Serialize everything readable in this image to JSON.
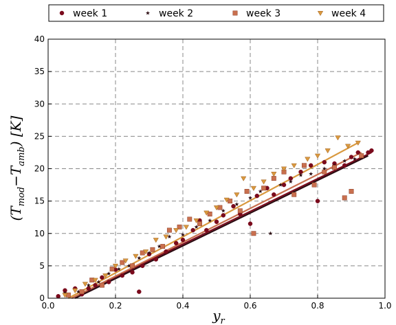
{
  "chart_data": {
    "type": "scatter",
    "xlabel": "y_r",
    "ylabel": "(T_mod − T_amb) [K]",
    "ylabel_parts": [
      "(T",
      "mod",
      "−T",
      "amb",
      ") [K]"
    ],
    "xlabel_parts": [
      "y",
      "r"
    ],
    "xlim": [
      0,
      1.0
    ],
    "ylim": [
      0,
      40
    ],
    "x_ticks": [
      0.0,
      0.2,
      0.4,
      0.6,
      0.8,
      1.0
    ],
    "y_ticks": [
      0,
      5,
      10,
      15,
      20,
      25,
      30,
      35,
      40
    ],
    "x_tick_labels": [
      "0.0",
      "0.2",
      "0.4",
      "0.6",
      "0.8",
      "1.0"
    ],
    "y_tick_labels": [
      "0",
      "5",
      "10",
      "15",
      "20",
      "25",
      "30",
      "35",
      "40"
    ],
    "grid": true,
    "legend_position": "top",
    "series": [
      {
        "name": "week 1",
        "marker": "circle",
        "color": "#7a0a1c",
        "fit": {
          "x": [
            0.07,
            0.96
          ],
          "y": [
            0.0,
            22.5
          ]
        },
        "points": [
          [
            0.03,
            0.3
          ],
          [
            0.05,
            1.2
          ],
          [
            0.08,
            1.5
          ],
          [
            0.1,
            0.6
          ],
          [
            0.12,
            1.5
          ],
          [
            0.14,
            2.0
          ],
          [
            0.16,
            3.2
          ],
          [
            0.18,
            2.5
          ],
          [
            0.2,
            4.4
          ],
          [
            0.22,
            3.5
          ],
          [
            0.25,
            4.0
          ],
          [
            0.27,
            1.0
          ],
          [
            0.28,
            5.0
          ],
          [
            0.3,
            6.8
          ],
          [
            0.32,
            6.0
          ],
          [
            0.35,
            7.2
          ],
          [
            0.38,
            8.5
          ],
          [
            0.4,
            9.0
          ],
          [
            0.43,
            10.5
          ],
          [
            0.45,
            12.0
          ],
          [
            0.47,
            10.5
          ],
          [
            0.5,
            11.8
          ],
          [
            0.52,
            12.8
          ],
          [
            0.55,
            14.2
          ],
          [
            0.57,
            13.0
          ],
          [
            0.6,
            11.5
          ],
          [
            0.62,
            15.8
          ],
          [
            0.65,
            17.0
          ],
          [
            0.67,
            16.0
          ],
          [
            0.7,
            17.5
          ],
          [
            0.72,
            18.5
          ],
          [
            0.75,
            19.5
          ],
          [
            0.78,
            20.5
          ],
          [
            0.8,
            15.0
          ],
          [
            0.82,
            21.0
          ],
          [
            0.85,
            20.8
          ],
          [
            0.88,
            20.5
          ],
          [
            0.9,
            21.8
          ],
          [
            0.92,
            22.5
          ],
          [
            0.95,
            22.5
          ],
          [
            0.96,
            22.8
          ]
        ]
      },
      {
        "name": "week 2",
        "marker": "star",
        "color": "#2b0a10",
        "fit": {
          "x": [
            0.08,
            0.95
          ],
          "y": [
            0.0,
            22.0
          ]
        },
        "points": [
          [
            0.05,
            0.8
          ],
          [
            0.09,
            1.0
          ],
          [
            0.12,
            2.0
          ],
          [
            0.15,
            2.5
          ],
          [
            0.18,
            3.8
          ],
          [
            0.21,
            4.5
          ],
          [
            0.24,
            5.0
          ],
          [
            0.27,
            6.2
          ],
          [
            0.3,
            7.0
          ],
          [
            0.33,
            8.0
          ],
          [
            0.36,
            9.5
          ],
          [
            0.4,
            9.8
          ],
          [
            0.44,
            11.0
          ],
          [
            0.48,
            12.0
          ],
          [
            0.52,
            13.5
          ],
          [
            0.56,
            14.5
          ],
          [
            0.6,
            15.5
          ],
          [
            0.63,
            16.5
          ],
          [
            0.66,
            10.0
          ],
          [
            0.69,
            17.5
          ],
          [
            0.72,
            18.0
          ],
          [
            0.75,
            19.0
          ],
          [
            0.78,
            19.2
          ],
          [
            0.82,
            20.0
          ],
          [
            0.85,
            20.5
          ],
          [
            0.88,
            21.2
          ],
          [
            0.91,
            21.5
          ]
        ]
      },
      {
        "name": "week 3",
        "marker": "square",
        "color": "#c9704f",
        "fit": {
          "x": [
            0.07,
            0.93
          ],
          "y": [
            0.0,
            22.5
          ]
        },
        "points": [
          [
            0.06,
            0.5
          ],
          [
            0.1,
            1.0
          ],
          [
            0.13,
            2.8
          ],
          [
            0.16,
            2.0
          ],
          [
            0.19,
            4.5
          ],
          [
            0.22,
            5.5
          ],
          [
            0.25,
            5.0
          ],
          [
            0.28,
            7.0
          ],
          [
            0.31,
            7.5
          ],
          [
            0.34,
            8.0
          ],
          [
            0.36,
            10.5
          ],
          [
            0.39,
            11.0
          ],
          [
            0.42,
            12.2
          ],
          [
            0.45,
            11.5
          ],
          [
            0.48,
            13.0
          ],
          [
            0.51,
            14.0
          ],
          [
            0.54,
            15.0
          ],
          [
            0.57,
            13.5
          ],
          [
            0.59,
            16.5
          ],
          [
            0.61,
            10.0
          ],
          [
            0.64,
            17.0
          ],
          [
            0.67,
            18.5
          ],
          [
            0.7,
            19.5
          ],
          [
            0.73,
            16.0
          ],
          [
            0.76,
            20.5
          ],
          [
            0.79,
            17.5
          ],
          [
            0.82,
            19.5
          ],
          [
            0.85,
            20.2
          ],
          [
            0.88,
            15.5
          ],
          [
            0.9,
            16.5
          ],
          [
            0.93,
            22.0
          ]
        ]
      },
      {
        "name": "week 4",
        "marker": "triangle-down",
        "color": "#d9993f",
        "fit": {
          "x": [
            0.06,
            0.92
          ],
          "y": [
            0.0,
            24.0
          ]
        },
        "points": [
          [
            0.05,
            0.5
          ],
          [
            0.08,
            1.2
          ],
          [
            0.11,
            2.2
          ],
          [
            0.14,
            2.8
          ],
          [
            0.17,
            3.5
          ],
          [
            0.2,
            5.0
          ],
          [
            0.23,
            5.8
          ],
          [
            0.26,
            6.5
          ],
          [
            0.29,
            7.2
          ],
          [
            0.32,
            9.0
          ],
          [
            0.35,
            9.5
          ],
          [
            0.38,
            10.5
          ],
          [
            0.41,
            11.0
          ],
          [
            0.44,
            12.0
          ],
          [
            0.47,
            13.2
          ],
          [
            0.5,
            14.0
          ],
          [
            0.53,
            15.2
          ],
          [
            0.56,
            16.0
          ],
          [
            0.58,
            18.5
          ],
          [
            0.61,
            17.0
          ],
          [
            0.64,
            18.0
          ],
          [
            0.67,
            19.2
          ],
          [
            0.7,
            20.0
          ],
          [
            0.73,
            20.5
          ],
          [
            0.77,
            21.5
          ],
          [
            0.8,
            22.0
          ],
          [
            0.83,
            22.8
          ],
          [
            0.86,
            24.8
          ],
          [
            0.89,
            23.5
          ],
          [
            0.92,
            24.0
          ]
        ]
      }
    ]
  }
}
